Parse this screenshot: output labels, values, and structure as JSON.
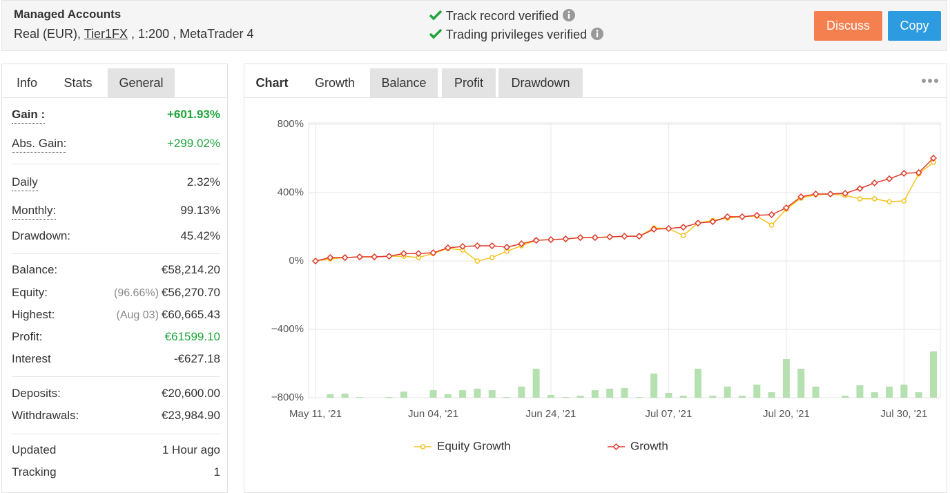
{
  "header": {
    "title": "Managed Accounts",
    "account": [
      "Real (EUR), ",
      "Tier1FX",
      " , 1:200 , MetaTrader 4"
    ],
    "verifications": [
      "Track record verified",
      "Trading privileges verified"
    ],
    "buttons": [
      "Discuss",
      "Copy"
    ]
  },
  "stats_panel": {
    "tabs": [
      "Info",
      "Stats",
      "General"
    ],
    "groups": [
      [
        {
          "label": "Gain :",
          "value": "+601.93%",
          "color": "#1fa53a",
          "bold": true,
          "underlined": true
        },
        {
          "label": "Abs. Gain:",
          "value": "+299.02%",
          "color": "#1fa53a",
          "underlined": true
        }
      ],
      [
        {
          "label": "Daily",
          "value": "2.32%",
          "underlined": true
        },
        {
          "label": "Monthly:",
          "value": "99.13%",
          "underlined": true
        },
        {
          "label": "Drawdown:",
          "value": "45.42%"
        }
      ],
      [
        {
          "label": "Balance:",
          "value": "€58,214.20"
        },
        {
          "label": "Equity:",
          "note": "(96.66%)",
          "value": "€56,270.70"
        },
        {
          "label": "Highest:",
          "note": "(Aug 03)",
          "value": "€60,665.43"
        },
        {
          "label": "Profit:",
          "value": "€61599.10",
          "color": "#1fa53a"
        },
        {
          "label": "Interest",
          "value": "-€627.18"
        }
      ],
      [
        {
          "label": "Deposits:",
          "value": "€20,600.00"
        },
        {
          "label": "Withdrawals:",
          "value": "€23,984.90"
        }
      ],
      [
        {
          "label": "Updated",
          "value": "1 Hour ago"
        },
        {
          "label": "Tracking",
          "value": "1"
        }
      ]
    ]
  },
  "chart_panel": {
    "tabs": [
      "Chart",
      "Growth",
      "Balance",
      "Profit",
      "Drawdown"
    ]
  },
  "chart": {
    "type": "line",
    "categories": [
      "May 11, '21",
      null,
      null,
      null,
      null,
      null,
      null,
      null,
      "Jun 04, '21",
      null,
      null,
      null,
      null,
      null,
      null,
      null,
      "Jun 24, '21",
      null,
      null,
      null,
      null,
      null,
      null,
      null,
      "Jul 07, '21",
      null,
      null,
      null,
      null,
      null,
      null,
      null,
      "Jul 20, '21",
      null,
      null,
      null,
      null,
      null,
      null,
      null,
      "Jul 30, '21",
      null,
      null
    ],
    "ylim": [
      -800,
      800
    ],
    "yticks": [
      {
        "value": 800,
        "label": "800%"
      },
      {
        "value": 400,
        "label": "400%"
      },
      {
        "value": 0,
        "label": "0%"
      },
      {
        "value": -400,
        "label": "−400%"
      },
      {
        "value": -800,
        "label": "−800%"
      }
    ],
    "grid": true,
    "series": [
      {
        "name": "Equity Growth",
        "color": "#f5c21b",
        "marker": "circle",
        "values": [
          0,
          12,
          20,
          24,
          24,
          28,
          28,
          20,
          44,
          73,
          65,
          0,
          20,
          57,
          89,
          121,
          125,
          129,
          137,
          137,
          141,
          145,
          145,
          194,
          190,
          149,
          222,
          238,
          251,
          259,
          263,
          210,
          303,
          368,
          388,
          392,
          384,
          364,
          364,
          347,
          351,
          509,
          578
        ]
      },
      {
        "name": "Growth",
        "color": "#e0392b",
        "marker": "diamond",
        "values": [
          0,
          20,
          20,
          24,
          24,
          28,
          44,
          44,
          48,
          77,
          85,
          89,
          89,
          81,
          101,
          121,
          125,
          129,
          137,
          137,
          141,
          145,
          145,
          186,
          190,
          198,
          222,
          230,
          259,
          259,
          267,
          271,
          311,
          376,
          392,
          392,
          396,
          424,
          457,
          481,
          513,
          517,
          602
        ]
      }
    ],
    "bars": {
      "color": "#b5e0af",
      "values": [
        null,
        -780,
        -776,
        -796,
        null,
        -796,
        -764,
        null,
        -756,
        -780,
        -756,
        -747,
        -756,
        -796,
        -735,
        -630,
        -784,
        -796,
        -788,
        -756,
        -747,
        -743,
        -796,
        -659,
        -772,
        -788,
        -630,
        -788,
        -735,
        -788,
        -723,
        -768,
        -574,
        -630,
        -735,
        null,
        -788,
        -727,
        -768,
        -735,
        -723,
        -768,
        -529
      ]
    }
  }
}
